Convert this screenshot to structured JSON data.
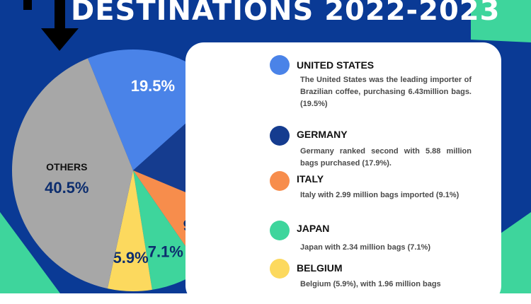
{
  "header": {
    "title": "DESTINATIONS 2022-2023"
  },
  "theme": {
    "background": "#0a3a95",
    "accent_green": "#3ed59c",
    "panel": "#ffffff"
  },
  "chart_data": {
    "type": "pie",
    "title": "DESTINATIONS 2022-2023",
    "slices": [
      {
        "label": "United States",
        "value": 19.5,
        "display": "19.5%",
        "color": "#4a83e8",
        "text_color": "#ffffff"
      },
      {
        "label": "Germany",
        "value": 17.9,
        "display": "17.9%",
        "color": "#153c8f",
        "text_color": "#ffffff"
      },
      {
        "label": "Italy",
        "value": 9.1,
        "display": "9.1%",
        "color": "#f78d4c",
        "text_color": "#0c2d6e"
      },
      {
        "label": "Japan",
        "value": 7.1,
        "display": "7.1%",
        "color": "#3ed59c",
        "text_color": "#0c2d6e"
      },
      {
        "label": "Belgium",
        "value": 5.9,
        "display": "5.9%",
        "color": "#fcd95e",
        "text_color": "#0c2d6e"
      },
      {
        "label": "OTHERS",
        "value": 40.5,
        "display": "40.5%",
        "color": "#a7a7a7",
        "text_color": "#0c2d6e",
        "name_label": "OTHERS"
      }
    ]
  },
  "legend": [
    {
      "name": "UNITED STATES",
      "color": "#4a83e8",
      "description": "The United States was the leading importer of Brazilian coffee, purchasing 6.43million bags. (19.5%)"
    },
    {
      "name": "GERMANY",
      "color": "#153c8f",
      "description": "Germany ranked second with 5.88 million bags purchased (17.9%)."
    },
    {
      "name": "ITALY",
      "color": "#f78d4c",
      "description": "Italy with 2.99 million bags imported (9.1%)"
    },
    {
      "name": "JAPAN",
      "color": "#3ed59c",
      "description": "Japan with 2.34 million bags (7.1%)"
    },
    {
      "name": "BELGIUM",
      "color": "#fcd95e",
      "description": "Belgium (5.9%), with 1.96 million bags"
    }
  ]
}
